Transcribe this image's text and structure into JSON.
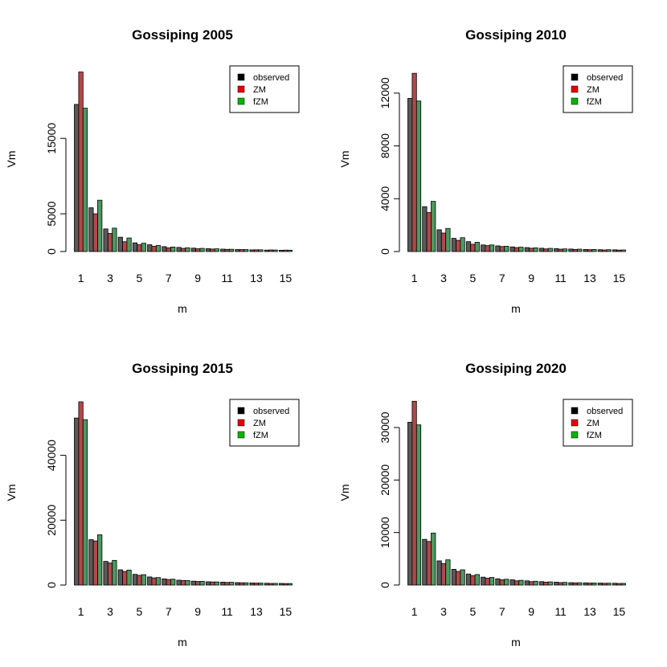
{
  "colors": {
    "observed": "#595959",
    "zm": "#b3474a",
    "fzm": "#4d9961"
  },
  "legend": [
    {
      "label": "observed",
      "swatch": "#000000"
    },
    {
      "label": "ZM",
      "swatch": "#e60000"
    },
    {
      "label": "fZM",
      "swatch": "#00b300"
    }
  ],
  "chart_data": [
    {
      "type": "bar",
      "title": "Gossiping 2005",
      "xlabel": "m",
      "ylabel": "Vm",
      "categories": [
        1,
        2,
        3,
        4,
        5,
        6,
        7,
        8,
        9,
        10,
        11,
        12,
        13,
        14,
        15
      ],
      "xtick_labels": [
        "1",
        "3",
        "5",
        "7",
        "9",
        "11",
        "13",
        "15"
      ],
      "yticks": [
        0,
        5000,
        15000
      ],
      "ylim": [
        0,
        24500
      ],
      "series": [
        {
          "name": "observed",
          "values": [
            19500,
            5800,
            3000,
            1900,
            1150,
            900,
            650,
            550,
            450,
            380,
            320,
            260,
            220,
            190,
            170
          ]
        },
        {
          "name": "ZM",
          "values": [
            23800,
            5000,
            2400,
            1300,
            900,
            700,
            500,
            420,
            370,
            330,
            290,
            260,
            230,
            210,
            190
          ]
        },
        {
          "name": "fZM",
          "values": [
            19000,
            6800,
            3100,
            1800,
            1100,
            800,
            600,
            500,
            420,
            360,
            300,
            260,
            230,
            200,
            180
          ]
        }
      ],
      "legend_position": "top-right"
    },
    {
      "type": "bar",
      "title": "Gossiping 2010",
      "xlabel": "m",
      "ylabel": "Vm",
      "categories": [
        1,
        2,
        3,
        4,
        5,
        6,
        7,
        8,
        9,
        10,
        11,
        12,
        13,
        14,
        15
      ],
      "xtick_labels": [
        "1",
        "3",
        "5",
        "7",
        "9",
        "11",
        "13",
        "15"
      ],
      "yticks": [
        0,
        4000,
        8000,
        12000
      ],
      "ylim": [
        0,
        14000
      ],
      "series": [
        {
          "name": "observed",
          "values": [
            11600,
            3400,
            1650,
            1000,
            750,
            500,
            430,
            350,
            300,
            250,
            220,
            190,
            160,
            140,
            130
          ]
        },
        {
          "name": "ZM",
          "values": [
            13500,
            2950,
            1400,
            850,
            550,
            450,
            380,
            300,
            250,
            200,
            180,
            160,
            140,
            120,
            110
          ]
        },
        {
          "name": "fZM",
          "values": [
            11400,
            3800,
            1750,
            1050,
            700,
            500,
            400,
            330,
            280,
            240,
            200,
            180,
            160,
            140,
            120
          ]
        }
      ],
      "legend_position": "top-right"
    },
    {
      "type": "bar",
      "title": "Gossiping 2015",
      "xlabel": "m",
      "ylabel": "Vm",
      "categories": [
        1,
        2,
        3,
        4,
        5,
        6,
        7,
        8,
        9,
        10,
        11,
        12,
        13,
        14,
        15
      ],
      "xtick_labels": [
        "1",
        "3",
        "5",
        "7",
        "9",
        "11",
        "13",
        "15"
      ],
      "yticks": [
        0,
        20000,
        40000
      ],
      "ylim": [
        0,
        57000
      ],
      "series": [
        {
          "name": "observed",
          "values": [
            51500,
            14000,
            7300,
            4700,
            3300,
            2500,
            1900,
            1500,
            1200,
            1000,
            900,
            750,
            650,
            550,
            500
          ]
        },
        {
          "name": "ZM",
          "values": [
            56500,
            13600,
            6800,
            4200,
            3000,
            2200,
            1700,
            1400,
            1100,
            950,
            800,
            700,
            600,
            500,
            450
          ]
        },
        {
          "name": "fZM",
          "values": [
            51000,
            15500,
            7600,
            4600,
            3200,
            2300,
            1800,
            1400,
            1150,
            950,
            850,
            700,
            600,
            520,
            470
          ]
        }
      ],
      "legend_position": "top-right"
    },
    {
      "type": "bar",
      "title": "Gossiping 2020",
      "xlabel": "m",
      "ylabel": "Vm",
      "categories": [
        1,
        2,
        3,
        4,
        5,
        6,
        7,
        8,
        9,
        10,
        11,
        12,
        13,
        14,
        15
      ],
      "xtick_labels": [
        "1",
        "3",
        "5",
        "7",
        "9",
        "11",
        "13",
        "15"
      ],
      "yticks": [
        0,
        10000,
        20000,
        30000
      ],
      "ylim": [
        0,
        35200
      ],
      "series": [
        {
          "name": "observed",
          "values": [
            31000,
            8700,
            4600,
            3000,
            2100,
            1500,
            1200,
            1000,
            800,
            650,
            550,
            450,
            420,
            380,
            340
          ]
        },
        {
          "name": "ZM",
          "values": [
            35000,
            8300,
            4100,
            2600,
            1800,
            1300,
            1000,
            800,
            650,
            550,
            470,
            410,
            370,
            330,
            300
          ]
        },
        {
          "name": "fZM",
          "values": [
            30500,
            9900,
            4800,
            2900,
            2000,
            1450,
            1100,
            900,
            720,
            600,
            500,
            440,
            390,
            350,
            320
          ]
        }
      ],
      "legend_position": "top-right"
    }
  ]
}
